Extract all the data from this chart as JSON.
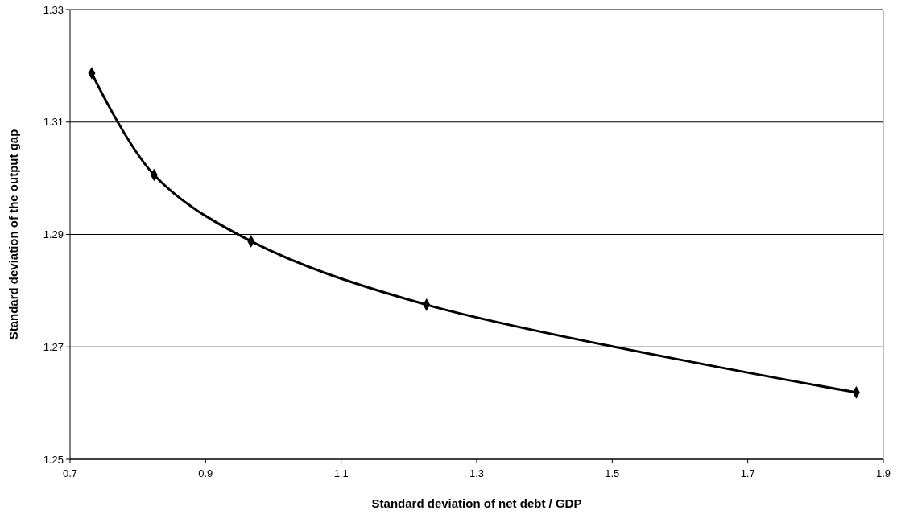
{
  "chart_data": {
    "type": "line",
    "xlabel": "Standard deviation of net debt / GDP",
    "ylabel": "Standard deviation of the output gap",
    "x": [
      0.732,
      0.824,
      0.967,
      1.226,
      1.86
    ],
    "series": [
      {
        "color": "#000000",
        "values": [
          1.3187,
          1.3006,
          1.2888,
          1.2775,
          1.2619
        ]
      }
    ],
    "xlim": [
      0.7,
      1.9
    ],
    "xticks": [
      0.7,
      0.9,
      1.1,
      1.3,
      1.5,
      1.7,
      1.9
    ],
    "ylim": [
      1.25,
      1.33
    ],
    "yticks": [
      1.25,
      1.27,
      1.29,
      1.31,
      1.33
    ],
    "grid": "y",
    "marker": "diamond",
    "line_style": "solid"
  }
}
